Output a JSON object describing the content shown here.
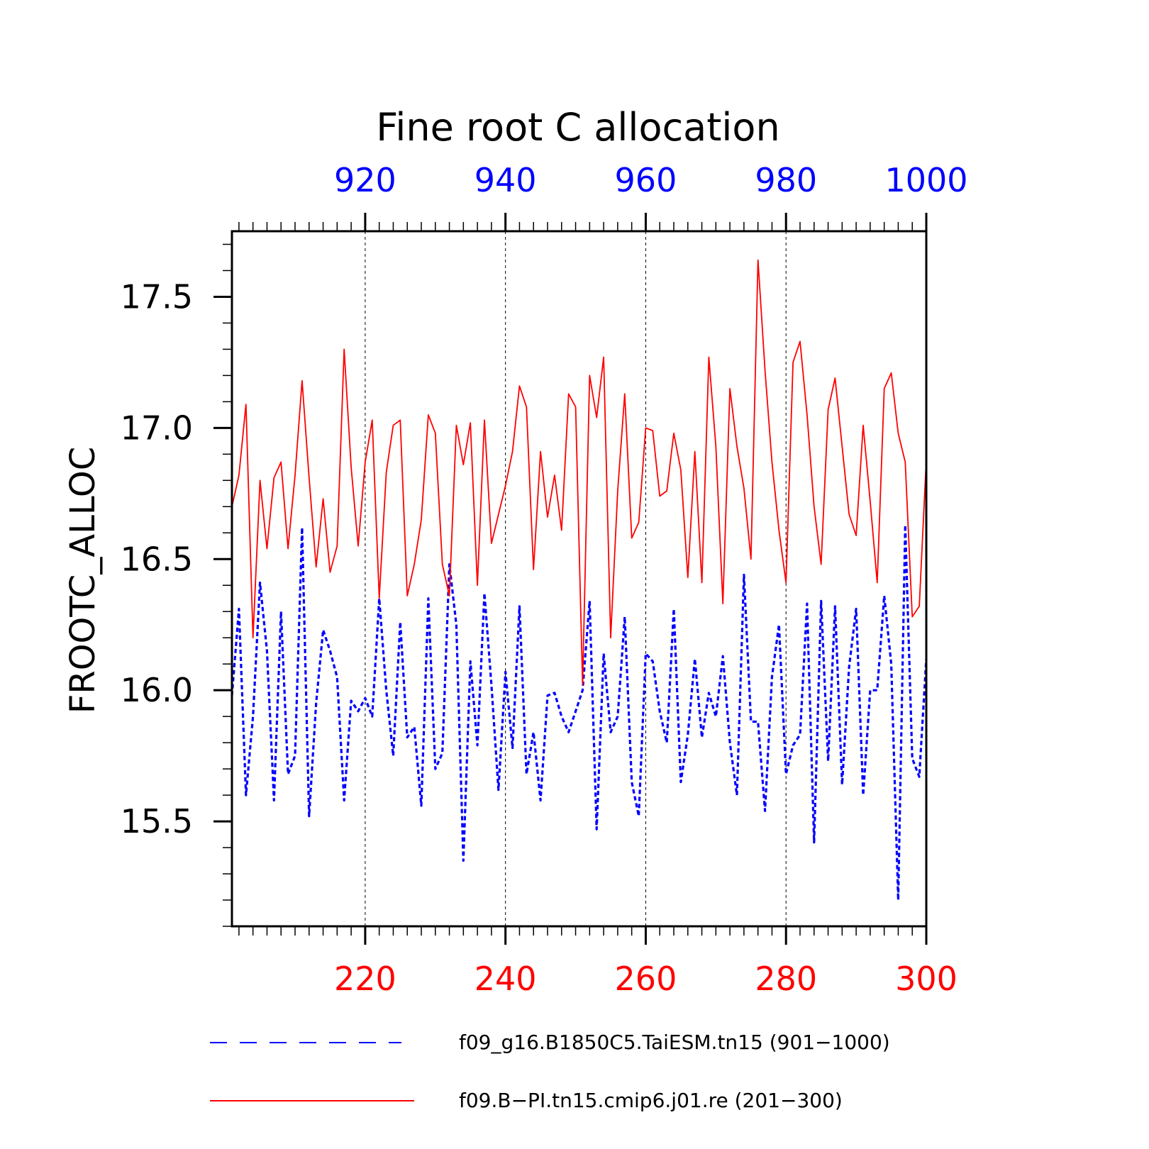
{
  "chart_data": {
    "type": "line",
    "title": "Fine root C allocation",
    "ylabel": "FROOTC_ALLOC",
    "ylim": [
      15.1,
      17.75
    ],
    "yticks": [
      "15.5",
      "16.0",
      "16.5",
      "17.0",
      "17.5"
    ],
    "grid": "dashed vertical lines at major x ticks",
    "x_bottom": {
      "range": [
        201,
        300
      ],
      "ticks": [
        "220",
        "240",
        "260",
        "280",
        "300"
      ],
      "color": "#ff0000"
    },
    "x_top": {
      "range": [
        901,
        1000
      ],
      "ticks": [
        "920",
        "940",
        "960",
        "980",
        "1000"
      ],
      "color": "#0000ff"
    },
    "legend_position": "bottom",
    "series": [
      {
        "name": "f09_g16.B1850C5.TaiESM.tn15 (901−1000)",
        "axis": "top",
        "color": "#0000ff",
        "style": "dashed",
        "x_start": 901,
        "values": [
          15.98,
          16.31,
          15.6,
          15.9,
          16.41,
          16.15,
          15.58,
          16.3,
          15.68,
          15.75,
          16.62,
          15.52,
          15.95,
          16.23,
          16.15,
          16.05,
          15.58,
          15.96,
          15.92,
          15.97,
          15.9,
          16.35,
          16.0,
          15.75,
          16.26,
          15.82,
          15.86,
          15.56,
          16.35,
          15.7,
          15.76,
          16.48,
          16.25,
          15.35,
          16.11,
          15.79,
          16.37,
          16.02,
          15.62,
          16.07,
          15.78,
          16.32,
          15.68,
          15.84,
          15.58,
          15.98,
          15.99,
          15.9,
          15.84,
          15.92,
          16.0,
          16.34,
          15.47,
          16.14,
          15.84,
          15.9,
          16.28,
          15.65,
          15.52,
          16.14,
          16.11,
          15.92,
          15.8,
          16.31,
          15.65,
          15.83,
          16.12,
          15.82,
          15.99,
          15.9,
          16.13,
          15.8,
          15.6,
          16.44,
          15.88,
          15.88,
          15.54,
          16.05,
          16.25,
          15.68,
          15.79,
          15.83,
          16.33,
          15.42,
          16.34,
          15.73,
          16.32,
          15.64,
          16.09,
          16.31,
          15.6,
          16.0,
          16.0,
          16.36,
          16.1,
          15.2,
          16.63,
          15.74,
          15.67,
          16.12
        ]
      },
      {
        "name": "f09.B−PI.tn15.cmip6.j01.re (201−300)",
        "axis": "bottom",
        "color": "#ff0000",
        "style": "solid",
        "x_start": 201,
        "values": [
          16.7,
          16.82,
          17.09,
          16.2,
          16.8,
          16.54,
          16.81,
          16.87,
          16.54,
          16.82,
          17.18,
          16.81,
          16.47,
          16.73,
          16.45,
          16.55,
          17.3,
          16.85,
          16.55,
          16.87,
          17.03,
          16.35,
          16.83,
          17.01,
          17.03,
          16.36,
          16.48,
          16.65,
          17.05,
          16.98,
          16.48,
          16.36,
          17.01,
          16.86,
          17.02,
          16.4,
          17.03,
          16.56,
          16.67,
          16.78,
          16.91,
          17.16,
          17.08,
          16.46,
          16.91,
          16.66,
          16.82,
          16.61,
          17.13,
          17.08,
          16.02,
          17.2,
          17.04,
          17.27,
          16.2,
          16.76,
          17.13,
          16.58,
          16.64,
          17.0,
          16.99,
          16.74,
          16.76,
          16.98,
          16.84,
          16.43,
          16.91,
          16.41,
          17.27,
          16.93,
          16.33,
          17.15,
          16.93,
          16.77,
          16.5,
          17.64,
          17.22,
          16.87,
          16.61,
          16.41,
          17.25,
          17.33,
          17.05,
          16.7,
          16.48,
          17.07,
          17.19,
          16.93,
          16.67,
          16.59,
          17.01,
          16.72,
          16.41,
          17.15,
          17.21,
          16.98,
          16.87,
          16.28,
          16.32,
          16.88
        ]
      }
    ]
  }
}
